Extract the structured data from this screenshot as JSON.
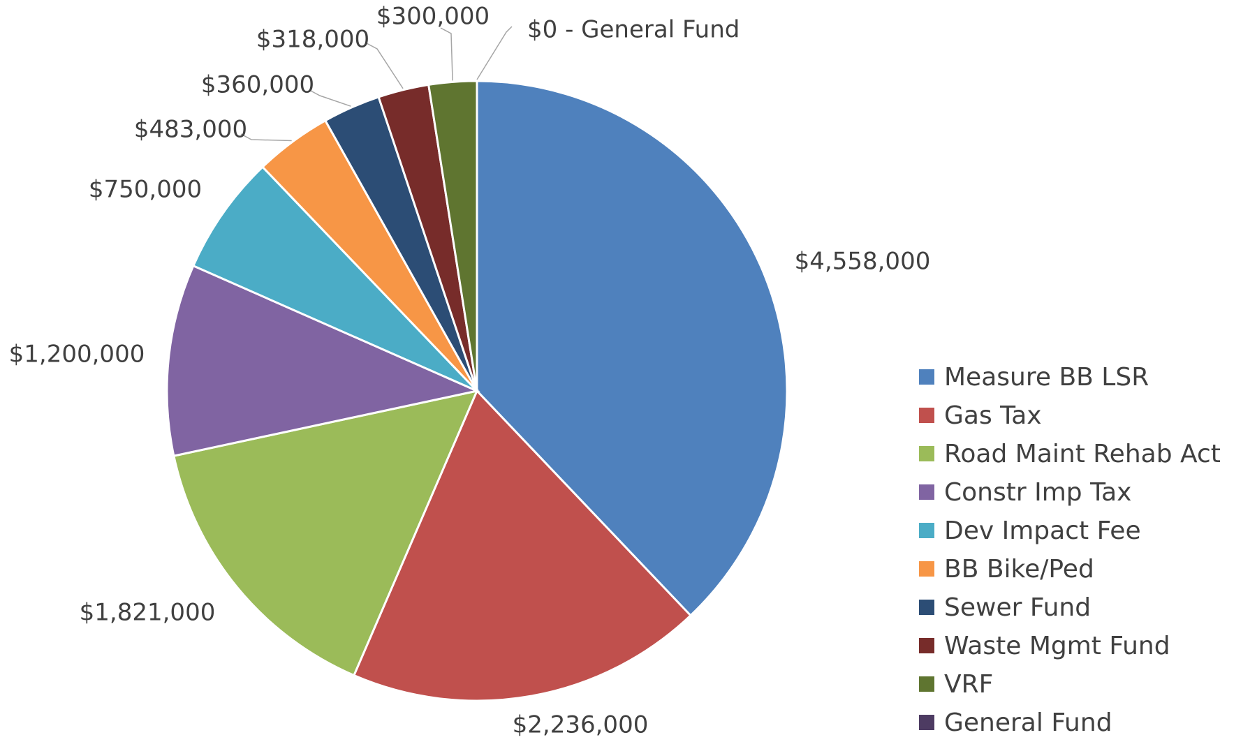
{
  "chart_data": {
    "type": "pie",
    "categories": [
      "Measure BB LSR",
      "Gas Tax",
      "Road Maint Rehab Act",
      "Constr Imp Tax",
      "Dev Impact Fee",
      "BB Bike/Ped",
      "Sewer Fund",
      "Waste Mgmt Fund",
      "VRF",
      "General Fund"
    ],
    "values": [
      4558000,
      2236000,
      1821000,
      1200000,
      750000,
      483000,
      360000,
      318000,
      300000,
      0
    ],
    "value_labels": [
      "$4,558,000",
      "$2,236,000",
      "$1,821,000",
      "$1,200,000",
      "$750,000",
      "$483,000",
      "$360,000",
      "$318,000",
      "$300,000",
      "$0 - General Fund"
    ],
    "colors": [
      "#4f81bd",
      "#c0504d",
      "#9bbb59",
      "#8064a2",
      "#4bacc6",
      "#f79646",
      "#2c4d75",
      "#772c2a",
      "#5f7530",
      "#4d3b62"
    ],
    "legend": "right"
  }
}
